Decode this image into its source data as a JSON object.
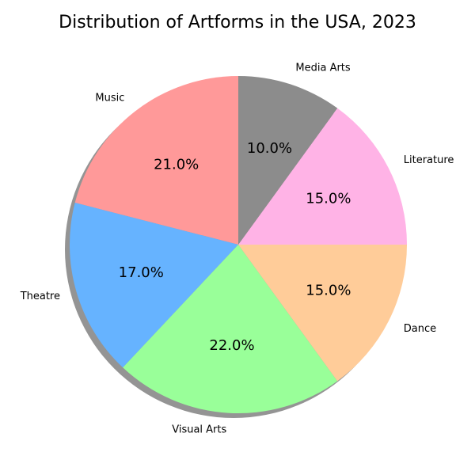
{
  "chart_data": {
    "type": "pie",
    "title": "Distribution of Artforms in the USA, 2023",
    "categories": [
      "Music",
      "Theatre",
      "Visual Arts",
      "Dance",
      "Literature",
      "Media Arts"
    ],
    "values": [
      21.0,
      17.0,
      22.0,
      15.0,
      15.0,
      10.0
    ],
    "value_labels": [
      "21.0%",
      "17.0%",
      "22.0%",
      "15.0%",
      "15.0%",
      "10.0%"
    ],
    "colors": [
      "#ff9999",
      "#66b3ff",
      "#99ff99",
      "#ffcc99",
      "#ffb3e6",
      "#8c8c8c"
    ],
    "start_angle_deg": 90,
    "direction": "counterclockwise",
    "shadow": true,
    "legend": "none"
  }
}
